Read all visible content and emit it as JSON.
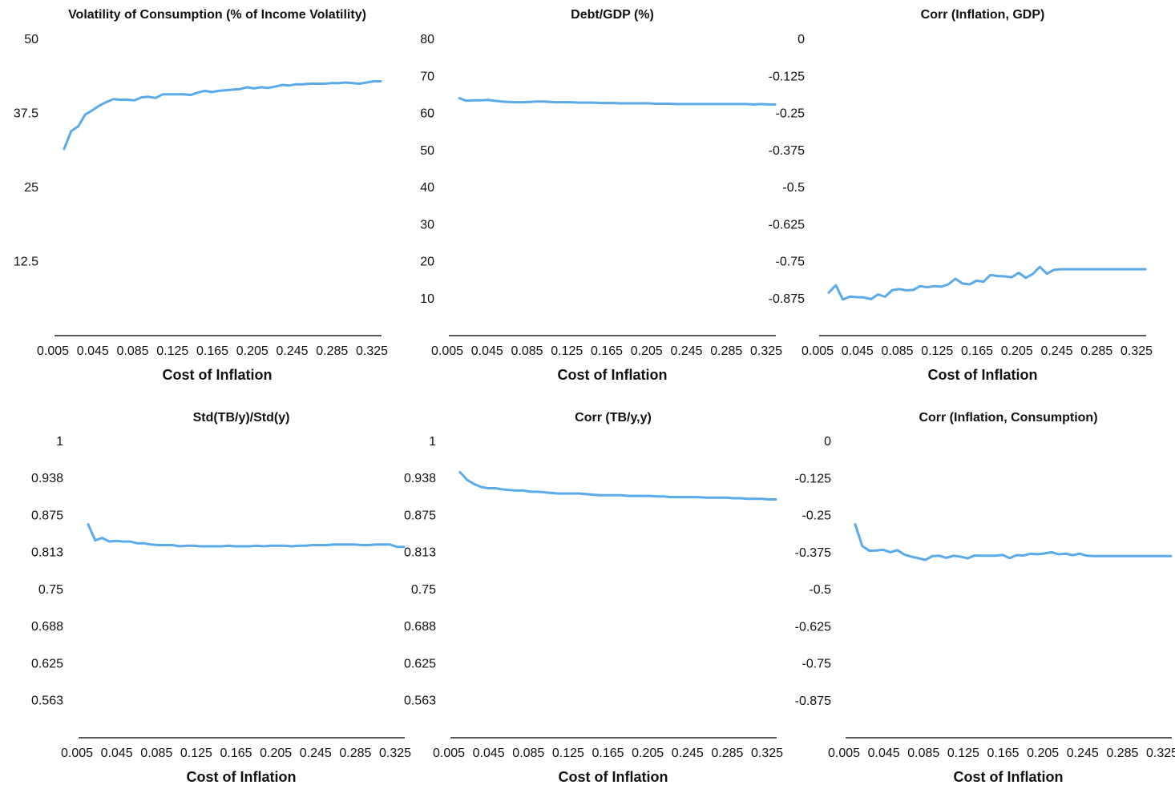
{
  "chart_data": [
    {
      "type": "line",
      "title": "Volatility of Consumption (% of Income Volatility)",
      "xlabel": "Cost of Inflation",
      "ylabel": "",
      "x": [
        0.005,
        0.0125,
        0.02,
        0.0275,
        0.035,
        0.0425,
        0.05,
        0.0575,
        0.065,
        0.0725,
        0.08,
        0.0875,
        0.095,
        0.1025,
        0.11,
        0.1175,
        0.125,
        0.1325,
        0.14,
        0.1475,
        0.155,
        0.1625,
        0.17,
        0.1775,
        0.185,
        0.1925,
        0.2,
        0.2075,
        0.215,
        0.2225,
        0.23,
        0.2375,
        0.245,
        0.2525,
        0.26,
        0.2675,
        0.275,
        0.2825,
        0.29,
        0.2975,
        0.305,
        0.3125,
        0.32,
        0.3275,
        0.335,
        0.3425
      ],
      "series": [
        {
          "values": [
            31.5,
            34.5,
            35.3,
            37.3,
            38.0,
            38.8,
            39.4,
            39.9,
            39.8,
            39.8,
            39.7,
            40.2,
            40.3,
            40.1,
            40.7,
            40.7,
            40.7,
            40.7,
            40.6,
            41.0,
            41.3,
            41.1,
            41.3,
            41.4,
            41.5,
            41.6,
            41.9,
            41.7,
            41.9,
            41.8,
            42.0,
            42.3,
            42.2,
            42.4,
            42.4,
            42.5,
            42.5,
            42.5,
            42.6,
            42.6,
            42.7,
            42.6,
            42.5,
            42.7,
            42.9,
            42.9
          ]
        }
      ],
      "yticks": [
        "50",
        "37.5",
        "25",
        "12.5"
      ],
      "xticks": [
        "0.005",
        "0.045",
        "0.085",
        "0.125",
        "0.165",
        "0.205",
        "0.245",
        "0.285",
        "0.325"
      ],
      "ylim": [
        0,
        50
      ],
      "grid": false,
      "color": "#5aaaea"
    },
    {
      "type": "line",
      "title": "Debt/GDP (%)",
      "xlabel": "Cost of Inflation",
      "ylabel": "",
      "x": [
        0.005,
        0.0125,
        0.02,
        0.0275,
        0.035,
        0.0425,
        0.05,
        0.0575,
        0.065,
        0.0725,
        0.08,
        0.0875,
        0.095,
        0.1025,
        0.11,
        0.1175,
        0.125,
        0.1325,
        0.14,
        0.1475,
        0.155,
        0.1625,
        0.17,
        0.1775,
        0.185,
        0.1925,
        0.2,
        0.2075,
        0.215,
        0.2225,
        0.23,
        0.2375,
        0.245,
        0.2525,
        0.26,
        0.2675,
        0.275,
        0.2825,
        0.29,
        0.2975,
        0.305,
        0.3125,
        0.32,
        0.3275,
        0.335,
        0.3425
      ],
      "series": [
        {
          "values": [
            64.1,
            63.4,
            63.5,
            63.5,
            63.6,
            63.4,
            63.2,
            63.1,
            63.0,
            63.0,
            63.1,
            63.2,
            63.2,
            63.1,
            63.0,
            63.0,
            63.0,
            62.9,
            62.9,
            62.9,
            62.8,
            62.8,
            62.8,
            62.7,
            62.7,
            62.7,
            62.7,
            62.7,
            62.6,
            62.6,
            62.6,
            62.5,
            62.5,
            62.5,
            62.5,
            62.5,
            62.5,
            62.5,
            62.5,
            62.5,
            62.5,
            62.5,
            62.4,
            62.5,
            62.4,
            62.4
          ]
        }
      ],
      "yticks": [
        "80",
        "70",
        "60",
        "50",
        "40",
        "30",
        "20",
        "10"
      ],
      "xticks": [
        "0.005",
        "0.045",
        "0.085",
        "0.125",
        "0.165",
        "0.205",
        "0.245",
        "0.285",
        "0.325"
      ],
      "ylim": [
        0,
        80
      ],
      "grid": false,
      "color": "#5aaaea"
    },
    {
      "type": "line",
      "title": "Corr (Inflation, GDP)",
      "xlabel": "Cost of Inflation",
      "ylabel": "",
      "x": [
        0.005,
        0.0125,
        0.02,
        0.0275,
        0.035,
        0.0425,
        0.05,
        0.0575,
        0.065,
        0.0725,
        0.08,
        0.0875,
        0.095,
        0.1025,
        0.11,
        0.1175,
        0.125,
        0.1325,
        0.14,
        0.1475,
        0.155,
        0.1625,
        0.17,
        0.1775,
        0.185,
        0.1925,
        0.2,
        0.2075,
        0.215,
        0.2225,
        0.23,
        0.2375,
        0.245,
        0.2525,
        0.26,
        0.2675,
        0.275,
        0.2825,
        0.29,
        0.2975,
        0.305,
        0.3125,
        0.32,
        0.3275,
        0.335,
        0.3425
      ],
      "series": [
        {
          "values": [
            -0.855,
            -0.83,
            -0.878,
            -0.868,
            -0.87,
            -0.871,
            -0.877,
            -0.861,
            -0.869,
            -0.847,
            -0.843,
            -0.847,
            -0.846,
            -0.833,
            -0.837,
            -0.833,
            -0.835,
            -0.827,
            -0.808,
            -0.824,
            -0.827,
            -0.815,
            -0.818,
            -0.795,
            -0.799,
            -0.8,
            -0.803,
            -0.788,
            -0.805,
            -0.792,
            -0.768,
            -0.791,
            -0.778,
            -0.776,
            -0.776,
            -0.776,
            -0.776,
            -0.776,
            -0.776,
            -0.776,
            -0.776,
            -0.776,
            -0.776,
            -0.776,
            -0.776,
            -0.776
          ]
        }
      ],
      "yticks": [
        "0",
        "-0.125",
        "-0.25",
        "-0.375",
        "-0.5",
        "-0.625",
        "-0.75",
        "-0.875"
      ],
      "xticks": [
        "0.005",
        "0.045",
        "0.085",
        "0.125",
        "0.165",
        "0.205",
        "0.245",
        "0.285",
        "0.325"
      ],
      "ylim": [
        -1,
        0
      ],
      "grid": false,
      "color": "#5aaaea"
    },
    {
      "type": "line",
      "title": "Std(TB/y)/Std(y)",
      "xlabel": "Cost of Inflation",
      "ylabel": "",
      "x": [
        0.005,
        0.0125,
        0.02,
        0.0275,
        0.035,
        0.0425,
        0.05,
        0.0575,
        0.065,
        0.0725,
        0.08,
        0.0875,
        0.095,
        0.1025,
        0.11,
        0.1175,
        0.125,
        0.1325,
        0.14,
        0.1475,
        0.155,
        0.1625,
        0.17,
        0.1775,
        0.185,
        0.1925,
        0.2,
        0.2075,
        0.215,
        0.2225,
        0.23,
        0.2375,
        0.245,
        0.2525,
        0.26,
        0.2675,
        0.275,
        0.2825,
        0.29,
        0.2975,
        0.305,
        0.3125,
        0.32,
        0.3275,
        0.335,
        0.3425
      ],
      "series": [
        {
          "values": [
            0.86,
            0.833,
            0.837,
            0.831,
            0.832,
            0.831,
            0.831,
            0.828,
            0.828,
            0.826,
            0.825,
            0.825,
            0.825,
            0.823,
            0.824,
            0.824,
            0.823,
            0.823,
            0.823,
            0.823,
            0.824,
            0.823,
            0.823,
            0.823,
            0.824,
            0.823,
            0.824,
            0.824,
            0.824,
            0.823,
            0.824,
            0.824,
            0.825,
            0.825,
            0.825,
            0.826,
            0.826,
            0.826,
            0.826,
            0.825,
            0.825,
            0.826,
            0.826,
            0.826,
            0.822,
            0.822
          ]
        }
      ],
      "yticks": [
        "1",
        "0.938",
        "0.875",
        "0.813",
        "0.75",
        "0.688",
        "0.625",
        "0.563"
      ],
      "xticks": [
        "0.005",
        "0.045",
        "0.085",
        "0.125",
        "0.165",
        "0.205",
        "0.245",
        "0.285",
        "0.325"
      ],
      "ylim": [
        0.5,
        1
      ],
      "grid": false,
      "color": "#5aaaea"
    },
    {
      "type": "line",
      "title": "Corr (TB/y,y)",
      "xlabel": "Cost of Inflation",
      "ylabel": "",
      "x": [
        0.005,
        0.0125,
        0.02,
        0.0275,
        0.035,
        0.0425,
        0.05,
        0.0575,
        0.065,
        0.0725,
        0.08,
        0.0875,
        0.095,
        0.1025,
        0.11,
        0.1175,
        0.125,
        0.1325,
        0.14,
        0.1475,
        0.155,
        0.1625,
        0.17,
        0.1775,
        0.185,
        0.1925,
        0.2,
        0.2075,
        0.215,
        0.2225,
        0.23,
        0.2375,
        0.245,
        0.2525,
        0.26,
        0.2675,
        0.275,
        0.2825,
        0.29,
        0.2975,
        0.305,
        0.3125,
        0.32,
        0.3275,
        0.335,
        0.3425
      ],
      "series": [
        {
          "values": [
            0.948,
            0.935,
            0.928,
            0.923,
            0.921,
            0.921,
            0.919,
            0.918,
            0.917,
            0.917,
            0.915,
            0.915,
            0.914,
            0.913,
            0.912,
            0.912,
            0.912,
            0.912,
            0.911,
            0.91,
            0.909,
            0.909,
            0.909,
            0.909,
            0.908,
            0.908,
            0.908,
            0.908,
            0.907,
            0.907,
            0.906,
            0.906,
            0.906,
            0.906,
            0.906,
            0.905,
            0.905,
            0.905,
            0.905,
            0.904,
            0.904,
            0.903,
            0.903,
            0.903,
            0.902,
            0.902
          ]
        }
      ],
      "yticks": [
        "1",
        "0.938",
        "0.875",
        "0.813",
        "0.75",
        "0.688",
        "0.625",
        "0.563"
      ],
      "xticks": [
        "0.005",
        "0.045",
        "0.085",
        "0.125",
        "0.165",
        "0.205",
        "0.245",
        "0.285",
        "0.325"
      ],
      "ylim": [
        0.5,
        1
      ],
      "grid": false,
      "color": "#5aaaea"
    },
    {
      "type": "line",
      "title": "Corr (Inflation, Consumption)",
      "xlabel": "Cost of Inflation",
      "ylabel": "",
      "x": [
        0.005,
        0.0125,
        0.02,
        0.0275,
        0.035,
        0.0425,
        0.05,
        0.0575,
        0.065,
        0.0725,
        0.08,
        0.0875,
        0.095,
        0.1025,
        0.11,
        0.1175,
        0.125,
        0.1325,
        0.14,
        0.1475,
        0.155,
        0.1625,
        0.17,
        0.1775,
        0.185,
        0.1925,
        0.2,
        0.2075,
        0.215,
        0.2225,
        0.23,
        0.2375,
        0.245,
        0.2525,
        0.26,
        0.2675,
        0.275,
        0.2825,
        0.29,
        0.2975,
        0.305,
        0.3125,
        0.32,
        0.3275,
        0.335,
        0.3425
      ],
      "series": [
        {
          "values": [
            -0.28,
            -0.353,
            -0.369,
            -0.368,
            -0.366,
            -0.374,
            -0.367,
            -0.382,
            -0.389,
            -0.394,
            -0.4,
            -0.387,
            -0.386,
            -0.393,
            -0.386,
            -0.389,
            -0.395,
            -0.385,
            -0.386,
            -0.386,
            -0.386,
            -0.383,
            -0.394,
            -0.384,
            -0.385,
            -0.379,
            -0.381,
            -0.378,
            -0.374,
            -0.381,
            -0.379,
            -0.384,
            -0.379,
            -0.386,
            -0.387,
            -0.387,
            -0.387,
            -0.387,
            -0.387,
            -0.387,
            -0.387,
            -0.387,
            -0.387,
            -0.387,
            -0.387,
            -0.387
          ]
        }
      ],
      "yticks": [
        "0",
        "-0.125",
        "-0.25",
        "-0.375",
        "-0.5",
        "-0.625",
        "-0.75",
        "-0.875"
      ],
      "xticks": [
        "0.005",
        "0.045",
        "0.085",
        "0.125",
        "0.165",
        "0.205",
        "0.245",
        "0.285",
        "0.325"
      ],
      "ylim": [
        -1,
        0
      ],
      "grid": false,
      "color": "#5aaaea"
    }
  ]
}
